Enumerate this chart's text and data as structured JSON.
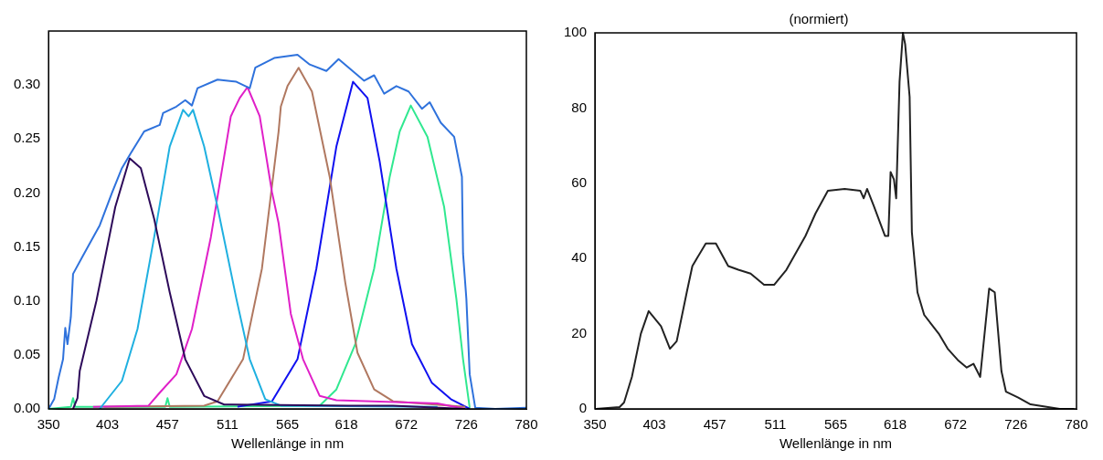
{
  "chart_data": [
    {
      "type": "line",
      "xlabel": "Wellenlänge in nm",
      "xlim": [
        350,
        780
      ],
      "xticks": [
        350,
        403,
        457,
        511,
        565,
        618,
        672,
        726,
        780
      ],
      "ylim": [
        0,
        0.35
      ],
      "yticks": [
        {
          "value": 0,
          "label": "0.00"
        },
        {
          "value": 0.05,
          "label": "0.05"
        },
        {
          "value": 0.1,
          "label": "0.10"
        },
        {
          "value": 0.15,
          "label": "0.15"
        },
        {
          "value": 0.2,
          "label": "0.20"
        },
        {
          "value": 0.25,
          "label": "0.25"
        },
        {
          "value": 0.3,
          "label": "0.30"
        }
      ],
      "series": [
        {
          "color": "#2f72dc",
          "x": [
            350,
            355,
            359,
            363,
            365,
            367,
            370,
            372,
            381,
            396,
            407,
            416,
            424,
            436,
            450,
            453,
            465,
            473,
            479,
            484,
            502,
            519,
            531,
            536,
            553,
            574,
            585,
            600,
            611,
            634,
            643,
            652,
            663,
            674,
            686,
            693,
            703,
            715,
            722,
            723,
            726,
            729,
            734,
            752,
            780
          ],
          "values": [
            0,
            0.009,
            0.029,
            0.046,
            0.075,
            0.06,
            0.085,
            0.125,
            0.142,
            0.17,
            0.2,
            0.223,
            0.237,
            0.257,
            0.263,
            0.274,
            0.28,
            0.286,
            0.281,
            0.297,
            0.305,
            0.303,
            0.297,
            0.316,
            0.325,
            0.328,
            0.319,
            0.313,
            0.324,
            0.304,
            0.309,
            0.292,
            0.299,
            0.294,
            0.278,
            0.284,
            0.265,
            0.252,
            0.215,
            0.144,
            0.102,
            0.032,
            0.001,
            0,
            0.001
          ]
        },
        {
          "color": "#2d0a5a",
          "x": [
            372,
            376,
            378,
            393,
            410,
            423,
            433,
            445,
            459,
            473,
            490,
            508,
            620,
            660,
            725
          ],
          "values": [
            0,
            0.01,
            0.035,
            0.1,
            0.187,
            0.232,
            0.223,
            0.176,
            0.108,
            0.046,
            0.012,
            0.004,
            0.003,
            0.003,
            0
          ]
        },
        {
          "color": "#1fb0e0",
          "x": [
            396,
            416,
            430,
            445,
            459,
            471,
            476,
            480,
            490,
            502,
            519,
            531,
            545,
            559,
            700
          ],
          "values": [
            0,
            0.026,
            0.074,
            0.159,
            0.243,
            0.277,
            0.271,
            0.277,
            0.243,
            0.187,
            0.102,
            0.046,
            0.009,
            0.003,
            0.002
          ]
        },
        {
          "color": "#e020c8",
          "x": [
            390,
            440,
            450,
            465,
            479,
            496,
            514,
            522,
            529,
            540,
            551,
            557,
            568,
            579,
            594,
            609,
            700,
            725
          ],
          "values": [
            0.002,
            0.003,
            0.015,
            0.032,
            0.074,
            0.159,
            0.271,
            0.288,
            0.298,
            0.271,
            0.201,
            0.172,
            0.088,
            0.046,
            0.012,
            0.008,
            0.005,
            0
          ]
        },
        {
          "color": "#b07860",
          "x": [
            400,
            490,
            502,
            525,
            542,
            557,
            559,
            565,
            575,
            587,
            603,
            617,
            628,
            643,
            660,
            725
          ],
          "values": [
            0.002,
            0.003,
            0.007,
            0.046,
            0.13,
            0.257,
            0.28,
            0.299,
            0.316,
            0.294,
            0.215,
            0.117,
            0.052,
            0.018,
            0.007,
            0.002
          ]
        },
        {
          "color": "#1010f0",
          "x": [
            520,
            551,
            574,
            591,
            609,
            624,
            637,
            648,
            663,
            677,
            695,
            712,
            729
          ],
          "values": [
            0.002,
            0.007,
            0.046,
            0.13,
            0.243,
            0.303,
            0.288,
            0.229,
            0.13,
            0.06,
            0.024,
            0.009,
            0
          ]
        },
        {
          "color": "#30e890",
          "x": [
            350,
            370,
            372,
            374,
            455,
            457,
            459,
            594,
            609,
            626,
            643,
            657,
            666,
            676,
            691,
            706,
            717,
            723,
            729
          ],
          "values": [
            0,
            0.002,
            0.01,
            0.002,
            0.002,
            0.01,
            0.002,
            0.003,
            0.018,
            0.06,
            0.13,
            0.215,
            0.257,
            0.281,
            0.252,
            0.187,
            0.102,
            0.046,
            0.001
          ]
        }
      ]
    },
    {
      "type": "line",
      "title": "(normiert)",
      "xlabel": "Wellenlänge in nm",
      "xlim": [
        350,
        780
      ],
      "xticks": [
        350,
        403,
        457,
        511,
        565,
        618,
        672,
        726,
        780
      ],
      "ylim": [
        0,
        100
      ],
      "yticks": [
        0,
        20,
        40,
        60,
        80,
        100
      ],
      "series": [
        {
          "color": "#222222",
          "x": [
            351,
            372,
            376,
            383,
            391,
            398,
            409,
            417,
            423,
            432,
            437,
            449,
            458,
            469,
            478,
            489,
            501,
            510,
            521,
            538,
            547,
            558,
            573,
            587,
            590,
            593,
            599,
            609,
            612,
            614,
            617,
            619,
            622,
            625,
            627,
            631,
            633,
            638,
            644,
            657,
            665,
            674,
            682,
            688,
            694,
            702,
            707,
            713,
            717,
            728,
            739,
            765,
            778
          ],
          "values": [
            0,
            0.5,
            1.7,
            8.5,
            20,
            26,
            22,
            16,
            18,
            31,
            38,
            44,
            44,
            38,
            37,
            36,
            33,
            33,
            37,
            46,
            52,
            58,
            58.5,
            58,
            56,
            58.5,
            54,
            46,
            46,
            63,
            61,
            56,
            87,
            100,
            97,
            83,
            47,
            31,
            25,
            20,
            16,
            13,
            11,
            12,
            8.5,
            32,
            31,
            10,
            4.6,
            3,
            1.2,
            0,
            0
          ]
        }
      ]
    }
  ]
}
